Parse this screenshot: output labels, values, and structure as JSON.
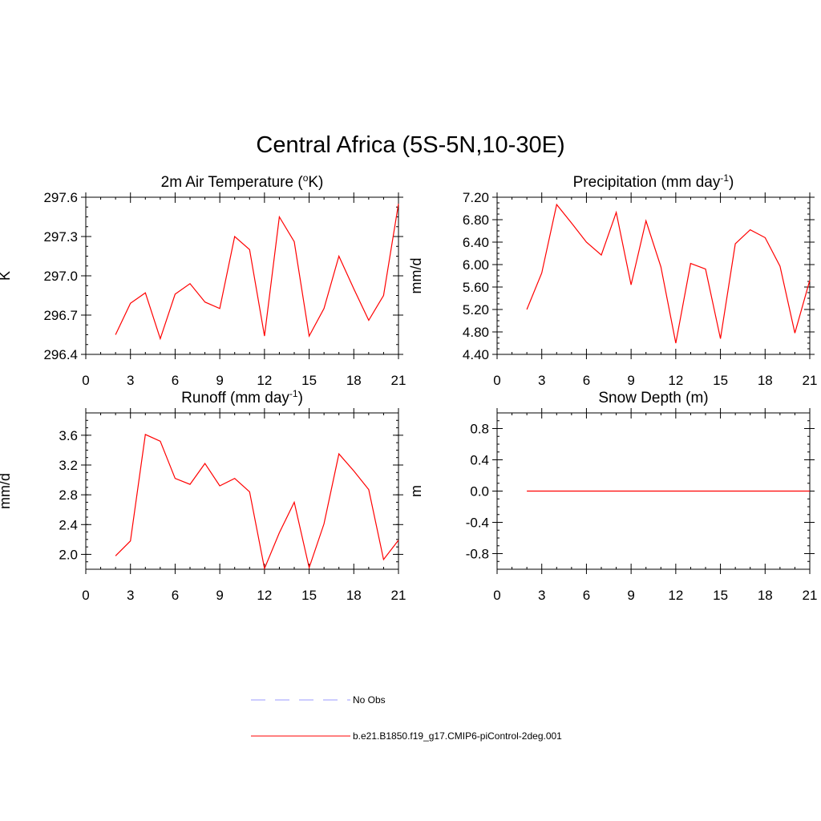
{
  "figure": {
    "title": "Central Africa (5S-5N,10-30E)"
  },
  "legend": {
    "entries": [
      {
        "label": "No Obs",
        "color": "#9999ff",
        "style": "dashed"
      },
      {
        "label": "b.e21.B1850.f19_g17.CMIP6-piControl-2deg.001",
        "color": "#ff0000",
        "style": "solid"
      }
    ]
  },
  "chart_data": [
    {
      "id": "tas",
      "type": "line",
      "title": "2m Air Temperature (",
      "title_sup": "o",
      "title_after": "K)",
      "ylabel": "K",
      "xlim": [
        0,
        21
      ],
      "ylim": [
        296.4,
        297.6
      ],
      "xticks": [
        0,
        3,
        6,
        9,
        12,
        15,
        18,
        21
      ],
      "yticks": [
        296.4,
        296.7,
        297.0,
        297.3,
        297.6
      ],
      "ytick_labels": [
        "296.4",
        "296.7",
        "297.0",
        "297.3",
        "297.6"
      ],
      "grid": false,
      "series": [
        {
          "name": "b.e21.B1850.f19_g17.CMIP6-piControl-2deg.001",
          "color": "#ff0000",
          "x": [
            2,
            3,
            4,
            5,
            6,
            7,
            8,
            9,
            10,
            11,
            12,
            13,
            14,
            15,
            16,
            17,
            18,
            19,
            20,
            21
          ],
          "y": [
            296.55,
            296.79,
            296.87,
            296.52,
            296.86,
            296.94,
            296.8,
            296.75,
            297.3,
            297.2,
            296.54,
            297.45,
            297.26,
            296.54,
            296.75,
            297.15,
            296.9,
            296.66,
            296.85,
            297.55
          ]
        }
      ]
    },
    {
      "id": "pr",
      "type": "line",
      "title": "Precipitation (mm day",
      "title_sup": "-1",
      "title_after": ")",
      "ylabel": "mm/d",
      "xlim": [
        0,
        21
      ],
      "ylim": [
        4.4,
        7.2
      ],
      "xticks": [
        0,
        3,
        6,
        9,
        12,
        15,
        18,
        21
      ],
      "yticks": [
        4.4,
        4.8,
        5.2,
        5.6,
        6.0,
        6.4,
        6.8,
        7.2
      ],
      "ytick_labels": [
        "4.40",
        "4.80",
        "5.20",
        "5.60",
        "6.00",
        "6.40",
        "6.80",
        "7.20"
      ],
      "grid": false,
      "series": [
        {
          "name": "b.e21.B1850.f19_g17.CMIP6-piControl-2deg.001",
          "color": "#ff0000",
          "x": [
            2,
            3,
            4,
            5,
            6,
            7,
            8,
            9,
            10,
            11,
            12,
            13,
            14,
            15,
            16,
            17,
            18,
            19,
            20,
            21
          ],
          "y": [
            5.2,
            5.85,
            7.07,
            6.74,
            6.4,
            6.17,
            6.93,
            5.64,
            6.78,
            5.96,
            4.6,
            6.02,
            5.92,
            4.68,
            6.37,
            6.62,
            6.48,
            5.97,
            4.78,
            5.72
          ]
        }
      ]
    },
    {
      "id": "runoff",
      "type": "line",
      "title": "Runoff (mm day",
      "title_sup": "-1",
      "title_after": ")",
      "ylabel": "mm/d",
      "xlim": [
        0,
        21
      ],
      "ylim": [
        1.8,
        3.9
      ],
      "xticks": [
        0,
        3,
        6,
        9,
        12,
        15,
        18,
        21
      ],
      "yticks": [
        2.0,
        2.4,
        2.8,
        3.2,
        3.6
      ],
      "ytick_labels": [
        "2.0",
        "2.4",
        "2.8",
        "3.2",
        "3.6"
      ],
      "grid": false,
      "series": [
        {
          "name": "b.e21.B1850.f19_g17.CMIP6-piControl-2deg.001",
          "color": "#ff0000",
          "x": [
            2,
            3,
            4,
            5,
            6,
            7,
            8,
            9,
            10,
            11,
            12,
            13,
            14,
            15,
            16,
            17,
            18,
            19,
            20,
            21
          ],
          "y": [
            1.98,
            2.18,
            3.61,
            3.52,
            3.02,
            2.94,
            3.22,
            2.92,
            3.02,
            2.84,
            1.81,
            2.29,
            2.7,
            1.82,
            2.41,
            3.35,
            3.12,
            2.87,
            1.93,
            2.19
          ]
        }
      ]
    },
    {
      "id": "snowdepth",
      "type": "line",
      "title": "Snow Depth (m)",
      "title_sup": "",
      "title_after": "",
      "ylabel": "m",
      "xlim": [
        0,
        21
      ],
      "ylim": [
        -1.0,
        1.0
      ],
      "xticks": [
        0,
        3,
        6,
        9,
        12,
        15,
        18,
        21
      ],
      "yticks": [
        -0.8,
        -0.4,
        0.0,
        0.4,
        0.8
      ],
      "ytick_labels": [
        "-0.8",
        "-0.4",
        "0.0",
        "0.4",
        "0.8"
      ],
      "grid": false,
      "series": [
        {
          "name": "b.e21.B1850.f19_g17.CMIP6-piControl-2deg.001",
          "color": "#ff0000",
          "x": [
            2,
            3,
            4,
            5,
            6,
            7,
            8,
            9,
            10,
            11,
            12,
            13,
            14,
            15,
            16,
            17,
            18,
            19,
            20,
            21
          ],
          "y": [
            0,
            0,
            0,
            0,
            0,
            0,
            0,
            0,
            0,
            0,
            0,
            0,
            0,
            0,
            0,
            0,
            0,
            0,
            0,
            0
          ]
        }
      ]
    }
  ]
}
